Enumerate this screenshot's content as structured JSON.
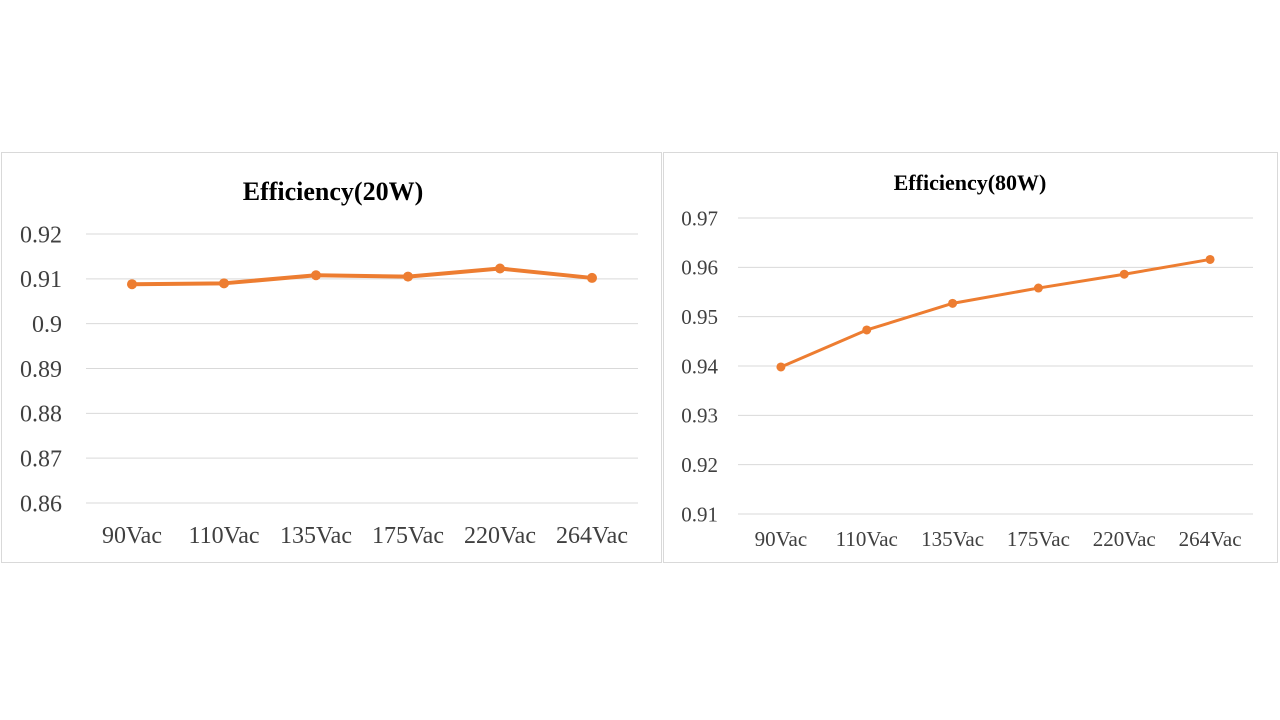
{
  "chart_data": [
    {
      "type": "line",
      "title": "Efficiency(20W)",
      "categories": [
        "90Vac",
        "110Vac",
        "135Vac",
        "175Vac",
        "220Vac",
        "264Vac"
      ],
      "series": [
        {
          "name": "Efficiency",
          "values": [
            0.9088,
            0.909,
            0.9108,
            0.9105,
            0.9123,
            0.9102
          ]
        }
      ],
      "yticks": [
        "0.86",
        "0.87",
        "0.88",
        "0.89",
        "0.9",
        "0.91",
        "0.92"
      ],
      "ylim": [
        0.86,
        0.92
      ],
      "xlabel": "",
      "ylabel": "",
      "grid": true,
      "color": "#ED7D31"
    },
    {
      "type": "line",
      "title": "Efficiency(80W)",
      "categories": [
        "90Vac",
        "110Vac",
        "135Vac",
        "175Vac",
        "220Vac",
        "264Vac"
      ],
      "series": [
        {
          "name": "Efficiency",
          "values": [
            0.9398,
            0.9473,
            0.9527,
            0.9558,
            0.9586,
            0.9616
          ]
        }
      ],
      "yticks": [
        "0.91",
        "0.92",
        "0.93",
        "0.94",
        "0.95",
        "0.96",
        "0.97"
      ],
      "ylim": [
        0.91,
        0.97
      ],
      "xlabel": "",
      "ylabel": "",
      "grid": true,
      "color": "#ED7D31"
    }
  ]
}
